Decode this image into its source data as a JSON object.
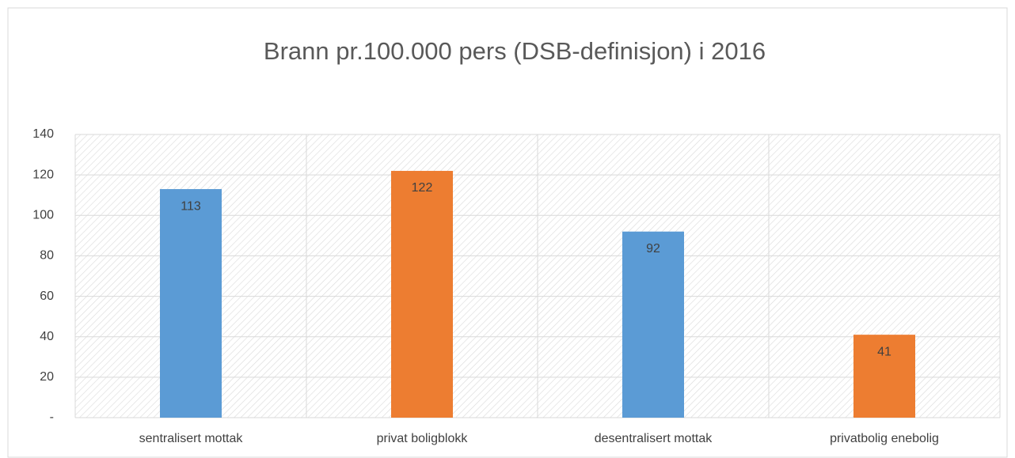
{
  "chart_data": {
    "type": "bar",
    "title": "Brann pr.100.000 pers (DSB-definisjon) i 2016",
    "categories": [
      "sentralisert mottak",
      "privat boligblokk",
      "desentralisert mottak",
      "privatbolig enebolig"
    ],
    "values": [
      113,
      122,
      92,
      41
    ],
    "colors": [
      "#5b9bd5",
      "#ed7d31",
      "#5b9bd5",
      "#ed7d31"
    ],
    "ylim": [
      0,
      140
    ],
    "yticks": [
      {
        "value": 0,
        "label": "-"
      },
      20,
      40,
      60,
      80,
      100,
      120,
      140
    ],
    "grid": true
  }
}
